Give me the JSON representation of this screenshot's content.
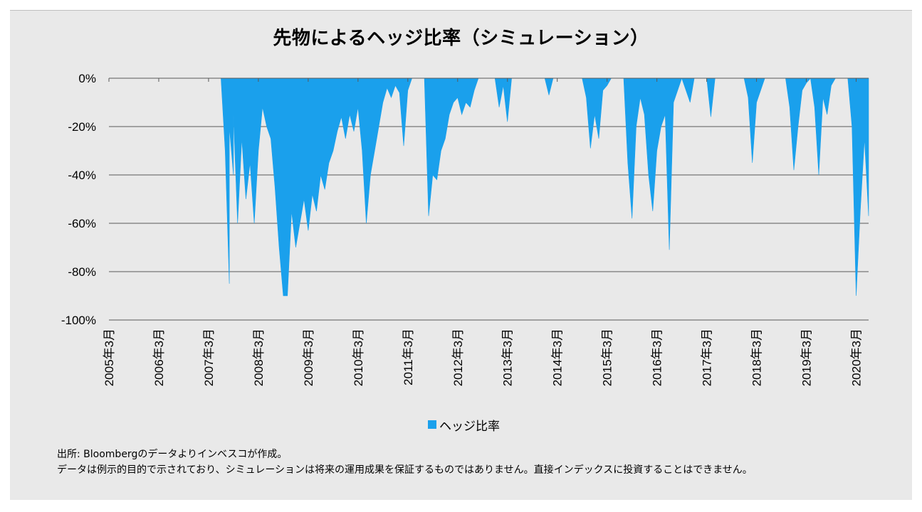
{
  "colors": {
    "series": "#1aa0ec",
    "grid": "#595959",
    "panel": "#e9e9e9"
  },
  "header": {
    "title": "先物によるヘッジ比率（シミュレーション）"
  },
  "legend": {
    "label": "ヘッジ比率"
  },
  "footnotes": {
    "source": "出所: Bloombergのデータよりインベスコが作成。",
    "disclaimer": "データは例示的目的で示されており、シミュレーションは将来の運用成果を保証するものではありません。直接インデックスに投資することはできません。"
  },
  "chart_data": {
    "type": "area",
    "title": "先物によるヘッジ比率（シミュレーション）",
    "xlabel": "",
    "ylabel": "",
    "x_range": [
      "2005-03",
      "2020-06"
    ],
    "ylim": [
      -100,
      0
    ],
    "y_ticks": [
      0,
      -20,
      -40,
      -60,
      -80,
      -100
    ],
    "y_tick_labels": [
      "0%",
      "-20%",
      "-40%",
      "-60%",
      "-80%",
      "-100%"
    ],
    "x_tick_labels": [
      "2005年3月",
      "2006年3月",
      "2007年3月",
      "2008年3月",
      "2009年3月",
      "2010年3月",
      "2011年3月",
      "2012年3月",
      "2013年3月",
      "2014年3月",
      "2015年3月",
      "2016年3月",
      "2017年3月",
      "2018年3月",
      "2019年3月",
      "2020年3月"
    ],
    "grid": true,
    "legend_position": "bottom",
    "series": [
      {
        "name": "ヘッジ比率",
        "points": [
          [
            "2005-03",
            0
          ],
          [
            "2007-06",
            0
          ],
          [
            "2007-07",
            -30
          ],
          [
            "2007-08",
            -85
          ],
          [
            "2007-08",
            -20
          ],
          [
            "2007-09",
            -40
          ],
          [
            "2007-09",
            -15
          ],
          [
            "2007-10",
            -60
          ],
          [
            "2007-11",
            -25
          ],
          [
            "2007-12",
            -50
          ],
          [
            "2008-01",
            -35
          ],
          [
            "2008-02",
            -60
          ],
          [
            "2008-03",
            -30
          ],
          [
            "2008-04",
            -12
          ],
          [
            "2008-05",
            -20
          ],
          [
            "2008-06",
            -25
          ],
          [
            "2008-07",
            -45
          ],
          [
            "2008-08",
            -70
          ],
          [
            "2008-09",
            -90
          ],
          [
            "2008-10",
            -90
          ],
          [
            "2008-11",
            -55
          ],
          [
            "2008-12",
            -70
          ],
          [
            "2009-01",
            -60
          ],
          [
            "2009-02",
            -50
          ],
          [
            "2009-03",
            -63
          ],
          [
            "2009-04",
            -48
          ],
          [
            "2009-05",
            -55
          ],
          [
            "2009-06",
            -40
          ],
          [
            "2009-07",
            -46
          ],
          [
            "2009-08",
            -35
          ],
          [
            "2009-09",
            -30
          ],
          [
            "2009-10",
            -22
          ],
          [
            "2009-11",
            -16
          ],
          [
            "2009-12",
            -25
          ],
          [
            "2010-01",
            -15
          ],
          [
            "2010-02",
            -22
          ],
          [
            "2010-03",
            -12
          ],
          [
            "2010-04",
            -30
          ],
          [
            "2010-05",
            -60
          ],
          [
            "2010-06",
            -40
          ],
          [
            "2010-07",
            -30
          ],
          [
            "2010-08",
            -20
          ],
          [
            "2010-09",
            -10
          ],
          [
            "2010-10",
            -4
          ],
          [
            "2010-11",
            -8
          ],
          [
            "2010-12",
            -3
          ],
          [
            "2011-01",
            -6
          ],
          [
            "2011-02",
            -28
          ],
          [
            "2011-03",
            -5
          ],
          [
            "2011-04",
            0
          ],
          [
            "2011-07",
            0
          ],
          [
            "2011-08",
            -57
          ],
          [
            "2011-09",
            -40
          ],
          [
            "2011-10",
            -42
          ],
          [
            "2011-11",
            -30
          ],
          [
            "2011-12",
            -25
          ],
          [
            "2012-01",
            -15
          ],
          [
            "2012-02",
            -10
          ],
          [
            "2012-03",
            -8
          ],
          [
            "2012-04",
            -15
          ],
          [
            "2012-05",
            -10
          ],
          [
            "2012-06",
            -12
          ],
          [
            "2012-07",
            -5
          ],
          [
            "2012-08",
            0
          ],
          [
            "2012-12",
            0
          ],
          [
            "2013-01",
            -12
          ],
          [
            "2013-02",
            -3
          ],
          [
            "2013-03",
            -18
          ],
          [
            "2013-04",
            0
          ],
          [
            "2013-12",
            0
          ],
          [
            "2014-01",
            -7
          ],
          [
            "2014-02",
            0
          ],
          [
            "2014-09",
            0
          ],
          [
            "2014-10",
            -8
          ],
          [
            "2014-11",
            -29
          ],
          [
            "2014-12",
            -15
          ],
          [
            "2015-01",
            -25
          ],
          [
            "2015-02",
            -5
          ],
          [
            "2015-03",
            -3
          ],
          [
            "2015-04",
            0
          ],
          [
            "2015-07",
            0
          ],
          [
            "2015-08",
            -35
          ],
          [
            "2015-09",
            -58
          ],
          [
            "2015-10",
            -20
          ],
          [
            "2015-11",
            -8
          ],
          [
            "2015-12",
            -15
          ],
          [
            "2016-01",
            -40
          ],
          [
            "2016-02",
            -55
          ],
          [
            "2016-03",
            -30
          ],
          [
            "2016-04",
            -20
          ],
          [
            "2016-05",
            -15
          ],
          [
            "2016-06",
            -71
          ],
          [
            "2016-07",
            -10
          ],
          [
            "2016-08",
            -5
          ],
          [
            "2016-09",
            0
          ],
          [
            "2016-11",
            -10
          ],
          [
            "2016-12",
            0
          ],
          [
            "2017-03",
            0
          ],
          [
            "2017-04",
            -16
          ],
          [
            "2017-05",
            0
          ],
          [
            "2017-12",
            0
          ],
          [
            "2018-01",
            -8
          ],
          [
            "2018-02",
            -35
          ],
          [
            "2018-03",
            -10
          ],
          [
            "2018-04",
            -5
          ],
          [
            "2018-05",
            0
          ],
          [
            "2018-10",
            0
          ],
          [
            "2018-11",
            -12
          ],
          [
            "2018-12",
            -38
          ],
          [
            "2019-01",
            -20
          ],
          [
            "2019-02",
            -5
          ],
          [
            "2019-03",
            -2
          ],
          [
            "2019-04",
            0
          ],
          [
            "2019-05",
            -12
          ],
          [
            "2019-06",
            -40
          ],
          [
            "2019-07",
            -8
          ],
          [
            "2019-08",
            -15
          ],
          [
            "2019-09",
            -3
          ],
          [
            "2019-10",
            0
          ],
          [
            "2020-01",
            0
          ],
          [
            "2020-02",
            -20
          ],
          [
            "2020-03",
            -90
          ],
          [
            "2020-04",
            -55
          ],
          [
            "2020-05",
            -25
          ],
          [
            "2020-06",
            -57
          ],
          [
            "2020-06",
            -20
          ]
        ]
      }
    ]
  }
}
